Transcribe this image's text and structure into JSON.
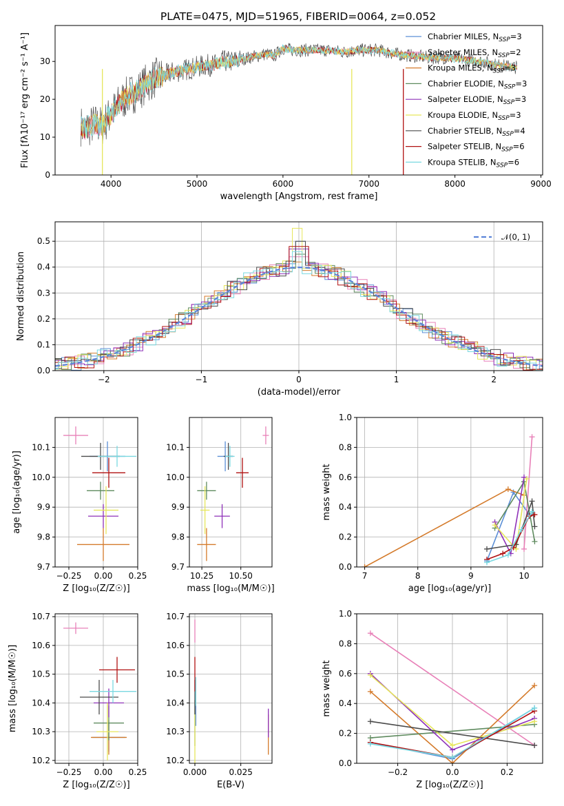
{
  "title": "PLATE=0475, MJD=51965, FIBERID=0064, z=0.052",
  "colors": {
    "Chabrier MILES": "#5b8fd6",
    "Salpeter MILES": "#e880b8",
    "Kroupa MILES": "#d47a2a",
    "Chabrier ELODIE": "#5e8a5e",
    "Salpeter ELODIE": "#8e30b8",
    "Kroupa ELODIE": "#e6e65a",
    "Chabrier STELIB": "#4a4a4a",
    "Salpeter STELIB": "#b01010",
    "Kroupa STELIB": "#78d8e0",
    "normal": "#5b84d8"
  },
  "legend_spectrum": [
    {
      "name": "Chabrier MILES",
      "nssp": "3"
    },
    {
      "name": "Salpeter MILES",
      "nssp": "2"
    },
    {
      "name": "Kroupa MILES",
      "nssp": "3"
    },
    {
      "name": "Chabrier ELODIE",
      "nssp": "3"
    },
    {
      "name": "Salpeter ELODIE",
      "nssp": "3"
    },
    {
      "name": "Kroupa ELODIE",
      "nssp": "3"
    },
    {
      "name": "Chabrier STELIB",
      "nssp": "4"
    },
    {
      "name": "Salpeter STELIB",
      "nssp": "6"
    },
    {
      "name": "Kroupa STELIB",
      "nssp": "6"
    }
  ],
  "legend_hist": "𝒩(0, 1)",
  "chart_data": [
    {
      "id": "spectrum",
      "type": "line",
      "xlabel": "wavelength [Angstrom, rest frame]",
      "ylabel": "Flux [fλ10⁻¹⁷ erg cm⁻² s⁻¹ A⁻¹]",
      "xlim": [
        3350,
        9020
      ],
      "ylim": [
        0,
        39.5
      ],
      "xticks": [
        4000,
        5000,
        6000,
        7000,
        8000,
        9000
      ],
      "yticks": [
        0,
        10,
        20,
        30
      ],
      "continuum": [
        [
          3650,
          13
        ],
        [
          3700,
          12
        ],
        [
          3800,
          13.5
        ],
        [
          3900,
          13
        ],
        [
          4000,
          16
        ],
        [
          4100,
          19
        ],
        [
          4200,
          21
        ],
        [
          4300,
          22
        ],
        [
          4400,
          24
        ],
        [
          4500,
          25.5
        ],
        [
          4600,
          26
        ],
        [
          4700,
          27
        ],
        [
          4800,
          27.5
        ],
        [
          4900,
          28
        ],
        [
          5000,
          28.5
        ],
        [
          5100,
          29
        ],
        [
          5200,
          29
        ],
        [
          5300,
          30
        ],
        [
          5400,
          30
        ],
        [
          5500,
          30.5
        ],
        [
          5600,
          31
        ],
        [
          5700,
          31.5
        ],
        [
          5800,
          32
        ],
        [
          5900,
          31.5
        ],
        [
          6000,
          33.5
        ],
        [
          6100,
          33
        ],
        [
          6300,
          33
        ],
        [
          6500,
          33
        ],
        [
          6700,
          32.5
        ],
        [
          6900,
          33
        ],
        [
          7100,
          33
        ],
        [
          7300,
          32
        ],
        [
          7500,
          31.5
        ],
        [
          7700,
          31
        ],
        [
          7900,
          31
        ],
        [
          8100,
          30.5
        ],
        [
          8300,
          30
        ],
        [
          8500,
          29
        ],
        [
          8700,
          28.5
        ]
      ],
      "dropouts": [
        3900,
        6800,
        7400
      ]
    },
    {
      "id": "residual-hist",
      "type": "histogram",
      "xlabel": "(data-model)/error",
      "ylabel": "Normed distribution",
      "xlim": [
        -2.5,
        2.5
      ],
      "ylim": [
        0,
        0.575
      ],
      "xticks": [
        -2,
        -1,
        0,
        1,
        2
      ],
      "yticks": [
        0.0,
        0.1,
        0.2,
        0.3,
        0.4,
        0.5
      ],
      "peak_values": [
        0.5,
        0.44,
        0.42,
        0.45,
        0.47,
        0.55,
        0.5,
        0.48,
        0.46
      ]
    },
    {
      "id": "age-vs-Z",
      "type": "scatter",
      "xlabel": "Z [log₁₀(Z/Z☉)]",
      "ylabel": "age  [log₁₀(age/yr)]",
      "xlim": [
        -0.35,
        0.25
      ],
      "ylim": [
        9.7,
        10.2
      ],
      "xticks": [
        -0.25,
        0.0,
        0.25
      ],
      "yticks": [
        9.7,
        9.8,
        9.9,
        10.0,
        10.1
      ],
      "points": [
        {
          "s": "Chabrier MILES",
          "x": 0.03,
          "y": 10.07,
          "ex": 0.13,
          "ey": 0.05
        },
        {
          "s": "Salpeter MILES",
          "x": -0.2,
          "y": 10.14,
          "ex": 0.09,
          "ey": 0.03
        },
        {
          "s": "Kroupa MILES",
          "x": 0.0,
          "y": 9.775,
          "ex": 0.19,
          "ey": 0.055
        },
        {
          "s": "Chabrier ELODIE",
          "x": -0.02,
          "y": 9.955,
          "ex": 0.1,
          "ey": 0.03
        },
        {
          "s": "Salpeter ELODIE",
          "x": 0.0,
          "y": 9.87,
          "ex": 0.11,
          "ey": 0.04
        },
        {
          "s": "Kroupa ELODIE",
          "x": 0.02,
          "y": 9.89,
          "ex": 0.09,
          "ey": 0.08
        },
        {
          "s": "Chabrier STELIB",
          "x": -0.02,
          "y": 10.07,
          "ex": 0.14,
          "ey": 0.045
        },
        {
          "s": "Salpeter STELIB",
          "x": 0.04,
          "y": 10.015,
          "ex": 0.12,
          "ey": 0.05
        },
        {
          "s": "Kroupa STELIB",
          "x": 0.1,
          "y": 10.07,
          "ex": 0.14,
          "ey": 0.035
        }
      ]
    },
    {
      "id": "age-vs-mass",
      "type": "scatter",
      "xlabel": "mass [log₁₀(M/M☉)]",
      "ylabel": "",
      "xlim": [
        10.17,
        10.7
      ],
      "ylim": [
        9.7,
        10.2
      ],
      "xticks": [
        10.25,
        10.5
      ],
      "yticks": [
        9.7,
        9.8,
        9.9,
        10.0,
        10.1
      ],
      "points": [
        {
          "s": "Chabrier MILES",
          "x": 10.4,
          "y": 10.07,
          "ex": 0.05,
          "ey": 0.05
        },
        {
          "s": "Salpeter MILES",
          "x": 10.66,
          "y": 10.14,
          "ex": 0.02,
          "ey": 0.03
        },
        {
          "s": "Kroupa MILES",
          "x": 10.28,
          "y": 9.775,
          "ex": 0.06,
          "ey": 0.055
        },
        {
          "s": "Chabrier ELODIE",
          "x": 10.28,
          "y": 9.955,
          "ex": 0.06,
          "ey": 0.03
        },
        {
          "s": "Salpeter ELODIE",
          "x": 10.38,
          "y": 9.87,
          "ex": 0.05,
          "ey": 0.04
        },
        {
          "s": "Kroupa ELODIE",
          "x": 10.27,
          "y": 9.89,
          "ex": 0.03,
          "ey": 0.08
        },
        {
          "s": "Chabrier STELIB",
          "x": 10.42,
          "y": 10.07,
          "ex": 0.03,
          "ey": 0.045
        },
        {
          "s": "Salpeter STELIB",
          "x": 10.51,
          "y": 10.015,
          "ex": 0.04,
          "ey": 0.05
        },
        {
          "s": "Kroupa STELIB",
          "x": 10.43,
          "y": 10.07,
          "ex": 0.03,
          "ey": 0.035
        }
      ]
    },
    {
      "id": "mw-vs-age",
      "type": "line",
      "xlabel": "age  [log₁₀(age/yr)]",
      "ylabel": "mass weight",
      "xlim": [
        6.85,
        10.35
      ],
      "ylim": [
        0,
        1
      ],
      "xticks": [
        7,
        8,
        9,
        10
      ],
      "yticks": [
        0.0,
        0.2,
        0.4,
        0.6,
        0.8,
        1.0
      ],
      "series": [
        {
          "s": "Chabrier MILES",
          "x": [
            9.3,
            9.8,
            10.1
          ],
          "y": [
            0.04,
            0.5,
            0.35
          ]
        },
        {
          "s": "Salpeter MILES",
          "x": [
            10.0,
            10.15
          ],
          "y": [
            0.12,
            0.87
          ]
        },
        {
          "s": "Kroupa MILES",
          "x": [
            7.0,
            9.7,
            10.0
          ],
          "y": [
            0.0,
            0.52,
            0.48
          ]
        },
        {
          "s": "Chabrier ELODIE",
          "x": [
            9.45,
            10.0,
            10.2
          ],
          "y": [
            0.26,
            0.57,
            0.17
          ]
        },
        {
          "s": "Salpeter ELODIE",
          "x": [
            9.45,
            9.75,
            10.0
          ],
          "y": [
            0.3,
            0.09,
            0.6
          ]
        },
        {
          "s": "Kroupa ELODIE",
          "x": [
            9.45,
            9.85,
            10.05
          ],
          "y": [
            0.28,
            0.12,
            0.59
          ]
        },
        {
          "s": "Chabrier STELIB",
          "x": [
            9.3,
            9.85,
            10.15,
            10.2
          ],
          "y": [
            0.12,
            0.15,
            0.44,
            0.27
          ]
        },
        {
          "s": "Salpeter STELIB",
          "x": [
            9.3,
            9.6,
            9.8,
            10.1,
            10.2
          ],
          "y": [
            0.05,
            0.09,
            0.13,
            0.34,
            0.35
          ]
        },
        {
          "s": "Kroupa STELIB",
          "x": [
            9.3,
            9.7,
            9.95,
            10.15
          ],
          "y": [
            0.03,
            0.08,
            0.25,
            0.37
          ]
        }
      ]
    },
    {
      "id": "mass-vs-Z",
      "type": "scatter",
      "xlabel": "Z [log₁₀(Z/Z☉)]",
      "ylabel": "mass [log₁₀(M/M☉)]",
      "xlim": [
        -0.35,
        0.25
      ],
      "ylim": [
        10.19,
        10.71
      ],
      "xticks": [
        -0.25,
        0.0,
        0.25
      ],
      "yticks": [
        10.2,
        10.3,
        10.4,
        10.5,
        10.6,
        10.7
      ],
      "points": [
        {
          "s": "Chabrier MILES",
          "x": 0.04,
          "y": 10.28,
          "ex": 0.12,
          "ey": 0.05
        },
        {
          "s": "Salpeter MILES",
          "x": -0.2,
          "y": 10.66,
          "ex": 0.09,
          "ey": 0.02
        },
        {
          "s": "Kroupa MILES",
          "x": 0.04,
          "y": 10.28,
          "ex": 0.13,
          "ey": 0.06
        },
        {
          "s": "Chabrier ELODIE",
          "x": 0.04,
          "y": 10.33,
          "ex": 0.11,
          "ey": 0.06
        },
        {
          "s": "Salpeter ELODIE",
          "x": 0.04,
          "y": 10.4,
          "ex": 0.11,
          "ey": 0.05
        },
        {
          "s": "Kroupa ELODIE",
          "x": 0.03,
          "y": 10.3,
          "ex": 0.08,
          "ey": 0.1
        },
        {
          "s": "Chabrier STELIB",
          "x": -0.03,
          "y": 10.42,
          "ex": 0.14,
          "ey": 0.06
        },
        {
          "s": "Salpeter STELIB",
          "x": 0.1,
          "y": 10.515,
          "ex": 0.13,
          "ey": 0.045
        },
        {
          "s": "Kroupa STELIB",
          "x": 0.07,
          "y": 10.44,
          "ex": 0.17,
          "ey": 0.04
        }
      ]
    },
    {
      "id": "mass-vs-ebv",
      "type": "scatter",
      "xlabel": "E(B-V)",
      "ylabel": "",
      "xlim": [
        -0.003,
        0.042
      ],
      "ylim": [
        10.19,
        10.71
      ],
      "xticks": [
        0.0,
        0.025
      ],
      "yticks": [
        10.2,
        10.3,
        10.4,
        10.5,
        10.6,
        10.7
      ],
      "points": [
        {
          "s": "Chabrier MILES",
          "x": 0.0005,
          "y": 10.4,
          "ex": 0.0,
          "ey": 0.08
        },
        {
          "s": "Salpeter MILES",
          "x": 0.0,
          "y": 10.65,
          "ex": 0.0,
          "ey": 0.04
        },
        {
          "s": "Kroupa MILES",
          "x": 0.04,
          "y": 10.29,
          "ex": 0.0,
          "ey": 0.07
        },
        {
          "s": "Chabrier ELODIE",
          "x": 0.0,
          "y": 10.33,
          "ex": 0.0,
          "ey": 0.08
        },
        {
          "s": "Salpeter ELODIE",
          "x": 0.04,
          "y": 10.33,
          "ex": 0.0,
          "ey": 0.05
        },
        {
          "s": "Kroupa ELODIE",
          "x": 0.0,
          "y": 10.28,
          "ex": 0.0,
          "ey": 0.1
        },
        {
          "s": "Chabrier STELIB",
          "x": 0.0,
          "y": 10.42,
          "ex": 0.0,
          "ey": 0.06
        },
        {
          "s": "Salpeter STELIB",
          "x": 0.0,
          "y": 10.5,
          "ex": 0.0,
          "ey": 0.06
        },
        {
          "s": "Kroupa STELIB",
          "x": 0.0005,
          "y": 10.44,
          "ex": 0.0,
          "ey": 0.05
        }
      ]
    },
    {
      "id": "mw-vs-Z",
      "type": "line",
      "xlabel": "Z [log₁₀(Z/Z☉)]",
      "ylabel": "mass weight",
      "xlim": [
        -0.35,
        0.33
      ],
      "ylim": [
        0,
        1
      ],
      "xticks": [
        -0.2,
        0.0,
        0.2
      ],
      "yticks": [
        0.0,
        0.2,
        0.4,
        0.6,
        0.8,
        1.0
      ],
      "series": [
        {
          "s": "Chabrier MILES",
          "x": [
            -0.3,
            0.0,
            0.3
          ],
          "y": [
            0.14,
            0.03,
            0.37
          ]
        },
        {
          "s": "Salpeter MILES",
          "x": [
            -0.3,
            0.3
          ],
          "y": [
            0.87,
            0.12
          ]
        },
        {
          "s": "Kroupa MILES",
          "x": [
            -0.3,
            0.0,
            0.3
          ],
          "y": [
            0.48,
            0.0,
            0.52
          ]
        },
        {
          "s": "Chabrier ELODIE",
          "x": [
            -0.3,
            0.3
          ],
          "y": [
            0.17,
            0.26
          ]
        },
        {
          "s": "Salpeter ELODIE",
          "x": [
            -0.3,
            0.0,
            0.3
          ],
          "y": [
            0.6,
            0.09,
            0.3
          ]
        },
        {
          "s": "Kroupa ELODIE",
          "x": [
            -0.3,
            0.0,
            0.3
          ],
          "y": [
            0.59,
            0.12,
            0.28
          ]
        },
        {
          "s": "Chabrier STELIB",
          "x": [
            -0.3,
            0.3
          ],
          "y": [
            0.28,
            0.12
          ]
        },
        {
          "s": "Salpeter STELIB",
          "x": [
            -0.3,
            0.0,
            0.3
          ],
          "y": [
            0.14,
            0.04,
            0.35
          ]
        },
        {
          "s": "Kroupa STELIB",
          "x": [
            -0.3,
            0.0,
            0.3
          ],
          "y": [
            0.13,
            0.04,
            0.37
          ]
        }
      ]
    }
  ]
}
